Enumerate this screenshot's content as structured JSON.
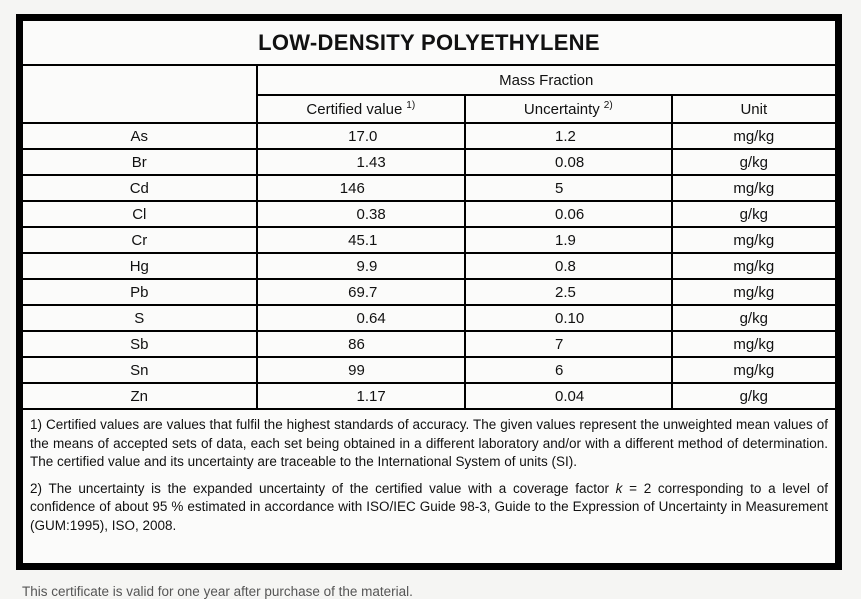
{
  "title": "LOW-DENSITY POLYETHYLENE",
  "table": {
    "group_header": "Mass Fraction",
    "columns": {
      "certified_label": "Certified value",
      "certified_sup": "1)",
      "uncertainty_label": "Uncertainty",
      "uncertainty_sup": "2)",
      "unit_label": "Unit"
    },
    "rows": [
      {
        "element": "As",
        "certified": "17.0",
        "uncertainty": "1.2",
        "unit": "mg/kg"
      },
      {
        "element": "Br",
        "certified": "1.43",
        "uncertainty": "0.08",
        "unit": "g/kg"
      },
      {
        "element": "Cd",
        "certified": "146",
        "uncertainty": "5",
        "unit": "mg/kg"
      },
      {
        "element": "Cl",
        "certified": "0.38",
        "uncertainty": "0.06",
        "unit": "g/kg"
      },
      {
        "element": "Cr",
        "certified": "45.1",
        "uncertainty": "1.9",
        "unit": "mg/kg"
      },
      {
        "element": "Hg",
        "certified": "9.9",
        "uncertainty": "0.8",
        "unit": "mg/kg"
      },
      {
        "element": "Pb",
        "certified": "69.7",
        "uncertainty": "2.5",
        "unit": "mg/kg"
      },
      {
        "element": "S",
        "certified": "0.64",
        "uncertainty": "0.10",
        "unit": "g/kg"
      },
      {
        "element": "Sb",
        "certified": "86",
        "uncertainty": "7",
        "unit": "mg/kg"
      },
      {
        "element": "Sn",
        "certified": "99",
        "uncertainty": "6",
        "unit": "mg/kg"
      },
      {
        "element": "Zn",
        "certified": "1.17",
        "uncertainty": "0.04",
        "unit": "g/kg"
      }
    ]
  },
  "footnotes": {
    "note1": "1) Certified values are values that fulfil the highest standards of accuracy. The given values represent the unweighted mean values of the means of accepted sets of data, each set being obtained in a different laboratory and/or with a different method of determination. The certified value and its uncertainty are traceable to the International System of units (SI).",
    "note2_before_k": "2) The uncertainty is the expanded uncertainty of the certified value with a coverage factor ",
    "note2_k": "k",
    "note2_after_k": " = 2 corresponding to a level of confidence of about 95 % estimated in accordance with ISO/IEC Guide 98-3, Guide to the Expression of Uncertainty in Measurement (GUM:1995), ISO, 2008."
  },
  "bottom_caption": "This certificate is valid for one year after purchase of the material."
}
